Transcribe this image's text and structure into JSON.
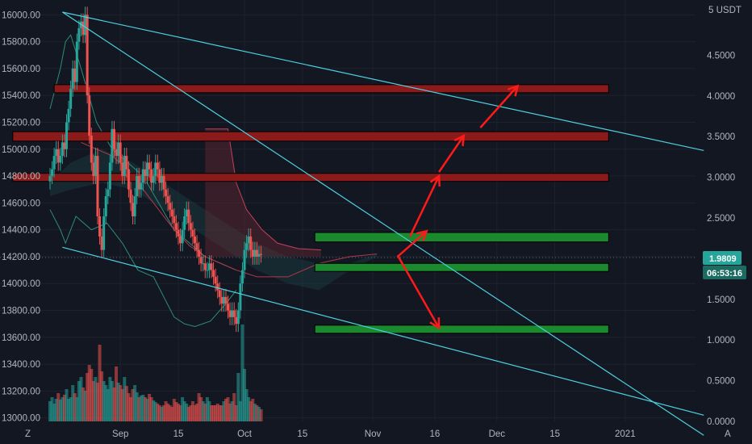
{
  "colors": {
    "background": "#131722",
    "up": "#26a69a",
    "down": "#ef5350",
    "cloud": "#1e4b4a",
    "channel": "#4dd0e1",
    "resistance": "#8b1a1a",
    "support": "#1b8a2e",
    "arrow": "#ff1a1a",
    "tag_price": "#26a69a",
    "tag_timer": "#1c6b62"
  },
  "chart_data": {
    "type": "candlestick",
    "left_axis": {
      "ylim": [
        12980,
        16080
      ],
      "ticks": [
        13000,
        13200,
        13400,
        13600,
        13800,
        14000,
        14200,
        14400,
        14600,
        14800,
        15000,
        15200,
        15400,
        15600,
        15800,
        16000
      ],
      "tick_labels": [
        "13000.00",
        "13200.00",
        "13400.00",
        "13600.00",
        "13800.00",
        "14000.00",
        "14200.00",
        "14400.00",
        "14600.00",
        "14800.00",
        "15000.00",
        "15200.00",
        "15400.00",
        "15600.00",
        "15800.00",
        "16000.00"
      ]
    },
    "right_axis": {
      "unit_label": "5 USDT",
      "ylim": [
        0,
        5.0
      ],
      "ticks": [
        0,
        0.5,
        1.0,
        1.5,
        2.0,
        2.5,
        3.0,
        3.5,
        4.0,
        4.5
      ],
      "tick_labels": [
        "0.0000",
        "0.5000",
        "1.0000",
        "1.5000",
        "2.0000",
        "2.5000",
        "3.0000",
        "3.5000",
        "4.0000",
        "4.5000"
      ]
    },
    "x_axis": {
      "labels": [
        "Sep",
        "15",
        "Oct",
        "15",
        "Nov",
        "16",
        "Dec",
        "15",
        "2021"
      ],
      "label_dates": [
        "2020-09-01",
        "2020-09-15",
        "2020-10-01",
        "2020-10-15",
        "2020-11-01",
        "2020-11-16",
        "2020-12-01",
        "2020-12-15",
        "2021-01-01"
      ],
      "start_date": "2020-08-15",
      "end_date": "2021-01-18"
    },
    "price_tag": "1.9809",
    "timer_tag": "06:53:16",
    "current_price": 14215,
    "candles_start_date": "2020-08-15",
    "candles_bar_days": 0.5,
    "candles_close": [
      14800,
      14850,
      14950,
      15000,
      14900,
      14950,
      15050,
      15000,
      15200,
      15300,
      15450,
      15600,
      15500,
      15800,
      15900,
      15950,
      15850,
      16000,
      15400,
      15100,
      14900,
      14800,
      14950,
      14500,
      14350,
      14250,
      14500,
      14650,
      14700,
      14900,
      15150,
      15000,
      14950,
      15050,
      14900,
      14800,
      14950,
      14850,
      14700,
      14600,
      14500,
      14650,
      14800,
      14700,
      14750,
      14850,
      14800,
      14900,
      14850,
      14750,
      14800,
      14900,
      14850,
      14750,
      14800,
      14700,
      14650,
      14600,
      14550,
      14500,
      14450,
      14400,
      14350,
      14300,
      14400,
      14500,
      14550,
      14450,
      14400,
      14350,
      14300,
      14250,
      14200,
      14150,
      14150,
      14100,
      14100,
      14150,
      14100,
      14050,
      14000,
      13950,
      13900,
      13850,
      13900,
      13850,
      13800,
      13750,
      13800,
      13750,
      13700,
      13800,
      14000,
      14100,
      14250,
      14300,
      14350,
      14250,
      14200,
      14250,
      14200,
      14220,
      14215
    ],
    "volume": [
      0.25,
      0.3,
      0.22,
      0.28,
      0.35,
      0.27,
      0.3,
      0.33,
      0.4,
      0.28,
      0.3,
      0.45,
      0.35,
      0.3,
      0.5,
      0.55,
      0.42,
      0.38,
      0.6,
      0.7,
      0.65,
      0.5,
      0.55,
      0.48,
      0.95,
      0.62,
      0.5,
      0.45,
      0.4,
      0.55,
      0.5,
      0.42,
      0.68,
      0.48,
      0.45,
      0.4,
      0.55,
      0.44,
      0.35,
      0.3,
      0.4,
      0.45,
      0.36,
      0.3,
      0.32,
      0.33,
      0.3,
      0.28,
      0.34,
      0.3,
      0.26,
      0.24,
      0.22,
      0.2,
      0.18,
      0.2,
      0.25,
      0.22,
      0.2,
      0.18,
      0.28,
      0.24,
      0.22,
      0.2,
      0.3,
      0.25,
      0.22,
      0.18,
      0.2,
      0.25,
      0.2,
      0.22,
      0.35,
      0.3,
      0.25,
      0.22,
      0.3,
      0.25,
      0.2,
      0.2,
      0.2,
      0.22,
      0.2,
      0.2,
      0.25,
      0.28,
      0.3,
      0.22,
      0.25,
      0.35,
      0.2,
      0.6,
      0.25,
      1.2,
      0.65,
      0.4,
      0.3,
      0.25,
      0.28,
      0.22,
      0.2,
      0.18,
      0.15
    ],
    "cloud_upper": [
      [
        0,
        14750
      ],
      [
        20,
        14900
      ],
      [
        50,
        15000
      ],
      [
        80,
        14900
      ],
      [
        110,
        14750
      ],
      [
        140,
        14600
      ],
      [
        170,
        14450
      ],
      [
        200,
        14300
      ],
      [
        230,
        14200
      ],
      [
        260,
        14150
      ],
      [
        290,
        14150
      ],
      [
        316,
        14220
      ]
    ],
    "cloud_lower": [
      [
        0,
        14650
      ],
      [
        20,
        14700
      ],
      [
        50,
        14750
      ],
      [
        80,
        14700
      ],
      [
        110,
        14550
      ],
      [
        140,
        14400
      ],
      [
        170,
        14250
      ],
      [
        200,
        14100
      ],
      [
        230,
        14000
      ],
      [
        260,
        13950
      ],
      [
        290,
        14100
      ],
      [
        316,
        14200
      ]
    ],
    "bands": {
      "upper": [
        [
          0,
          15300
        ],
        [
          10,
          15600
        ],
        [
          15,
          15800
        ],
        [
          20,
          15850
        ],
        [
          30,
          15600
        ],
        [
          45,
          15200
        ],
        [
          60,
          15000
        ],
        [
          75,
          14900
        ],
        [
          90,
          14800
        ],
        [
          105,
          14600
        ],
        [
          120,
          14400
        ],
        [
          135,
          14300
        ],
        [
          150,
          14200
        ],
        [
          165,
          14150
        ],
        [
          180,
          14100
        ]
      ],
      "lower": [
        [
          0,
          14550
        ],
        [
          10,
          14400
        ],
        [
          15,
          14300
        ],
        [
          25,
          14500
        ],
        [
          40,
          14400
        ],
        [
          55,
          14450
        ],
        [
          70,
          14300
        ],
        [
          85,
          14100
        ],
        [
          100,
          14050
        ],
        [
          110,
          13900
        ],
        [
          120,
          13750
        ],
        [
          130,
          13700
        ],
        [
          140,
          13680
        ],
        [
          155,
          13720
        ],
        [
          170,
          13850
        ],
        [
          180,
          13950
        ]
      ]
    },
    "red_line": [
      [
        30,
        15050
      ],
      [
        45,
        15000
      ],
      [
        60,
        14950
      ],
      [
        75,
        14850
      ],
      [
        90,
        14700
      ],
      [
        105,
        14550
      ],
      [
        120,
        14400
      ],
      [
        135,
        14280
      ],
      [
        150,
        14200
      ],
      [
        165,
        14150
      ],
      [
        180,
        14100
      ],
      [
        200,
        14050
      ],
      [
        230,
        14050
      ],
      [
        260,
        14150
      ],
      [
        290,
        14200
      ],
      [
        316,
        14220
      ]
    ],
    "kumo_future": [
      [
        150,
        15150
      ],
      [
        172,
        15150
      ],
      [
        180,
        14750
      ],
      [
        190,
        14550
      ],
      [
        205,
        14400
      ],
      [
        220,
        14300
      ],
      [
        240,
        14260
      ],
      [
        262,
        14250
      ]
    ],
    "resistance_zones": [
      {
        "d0": 1,
        "d1": 135,
        "y0": 15420,
        "y1": 15480
      },
      {
        "d0": -9,
        "d1": 135,
        "y0": 15060,
        "y1": 15130
      },
      {
        "d0": -9,
        "d1": 135,
        "y0": 14760,
        "y1": 14820
      }
    ],
    "support_zones": [
      {
        "d0": 64,
        "d1": 135,
        "y0": 14310,
        "y1": 14380
      },
      {
        "d0": 64,
        "d1": 135,
        "y0": 14090,
        "y1": 14150
      },
      {
        "d0": 64,
        "d1": 135,
        "y0": 13630,
        "y1": 13690
      }
    ],
    "channel_lines": [
      {
        "p1": [
          3,
          16020
        ],
        "p2": [
          158,
          14990
        ]
      },
      {
        "p1": [
          3,
          16020
        ],
        "p2": [
          158,
          12870
        ]
      },
      {
        "p1": [
          3,
          14270
        ],
        "p2": [
          158,
          13020
        ]
      }
    ],
    "arrows": [
      {
        "from": [
          84,
          14200
        ],
        "to": [
          91,
          14390
        ]
      },
      {
        "from": [
          87,
          14350
        ],
        "to": [
          94,
          14800
        ]
      },
      {
        "from": [
          94,
          14830
        ],
        "to": [
          100,
          15100
        ]
      },
      {
        "from": [
          104,
          15160
        ],
        "to": [
          113,
          15470
        ]
      },
      {
        "from": [
          84,
          14210
        ],
        "to": [
          94,
          13670
        ]
      }
    ]
  }
}
